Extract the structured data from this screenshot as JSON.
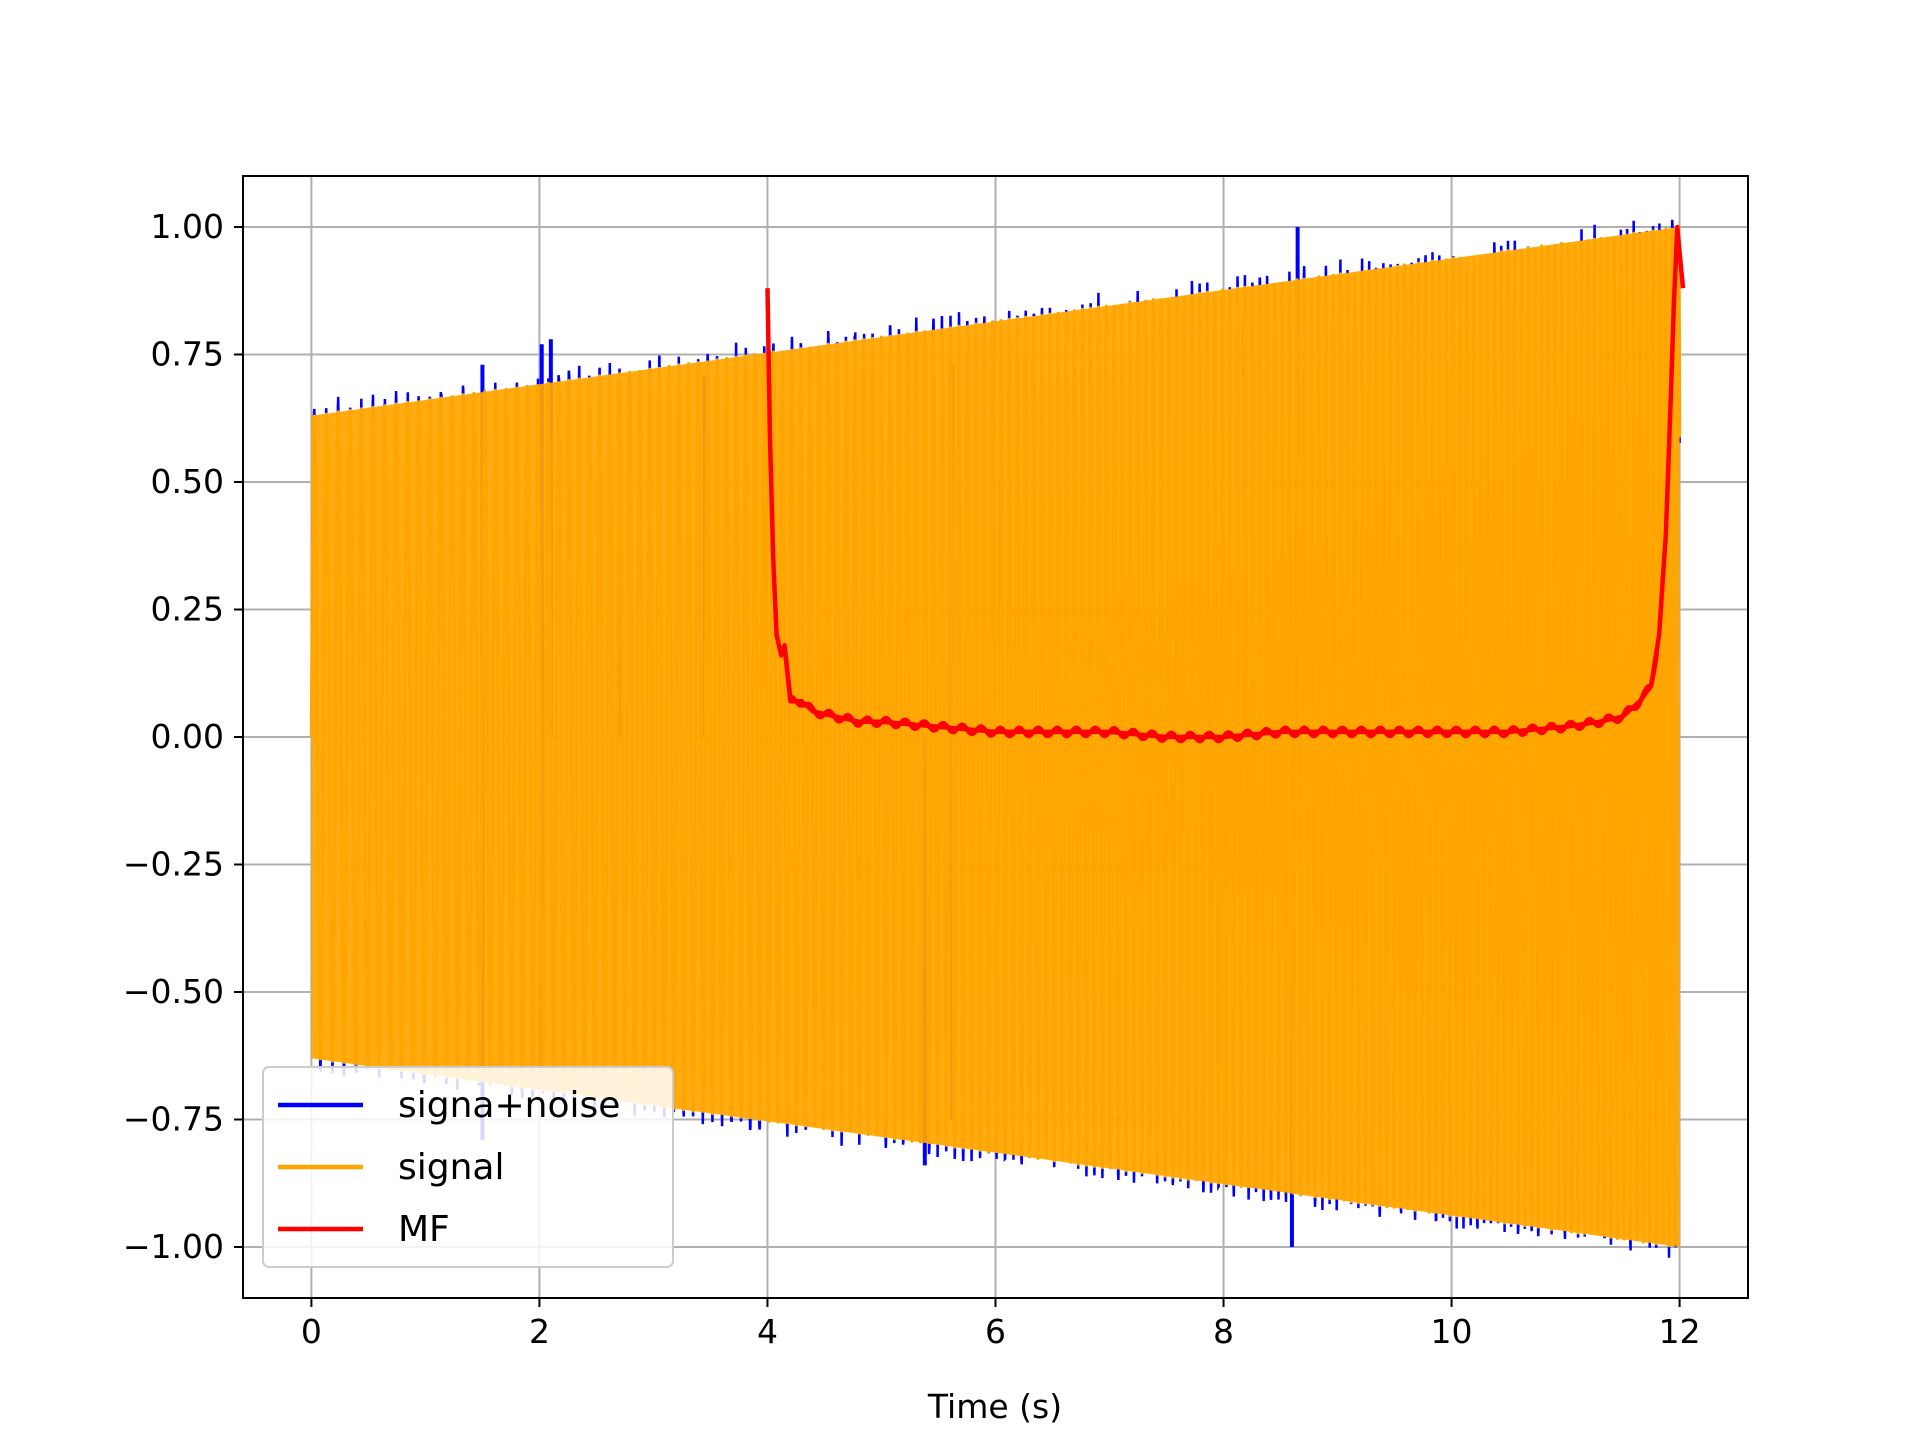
{
  "chart_data": {
    "type": "line",
    "title": "",
    "xlabel": "Time (s)",
    "ylabel": "",
    "xlim": [
      -0.6,
      12.6
    ],
    "ylim": [
      -1.1,
      1.1
    ],
    "grid": true,
    "legend_position": "lower-left",
    "x_ticks": [
      0,
      2,
      4,
      6,
      8,
      10,
      12
    ],
    "x_tick_labels": [
      "0",
      "2",
      "4",
      "6",
      "8",
      "10",
      "12"
    ],
    "y_ticks": [
      -1.0,
      -0.75,
      -0.5,
      -0.25,
      0.0,
      0.25,
      0.5,
      0.75,
      1.0
    ],
    "y_tick_labels": [
      "−1.00",
      "−0.75",
      "−0.50",
      "−0.25",
      "0.00",
      "0.25",
      "0.50",
      "0.75",
      "1.00"
    ],
    "series": [
      {
        "name": "signa+noise",
        "color": "#0000ff",
        "description": "oscillating signal with additive noise; envelope rises from about 0.63 to 1.0 over 0–12 s",
        "envelope": {
          "x": [
            0,
            12
          ],
          "amplitude_start": 0.63,
          "amplitude_end": 1.0
        },
        "spikes": [
          {
            "x": 1.5,
            "y": 0.73
          },
          {
            "x": 2.02,
            "y": 0.77
          },
          {
            "x": 2.1,
            "y": 0.78
          },
          {
            "x": 2.7,
            "y": 0.7
          },
          {
            "x": 3.45,
            "y": 0.71
          },
          {
            "x": 5.62,
            "y": 0.73
          },
          {
            "x": 8.18,
            "y": 0.81
          },
          {
            "x": 8.65,
            "y": 1.0
          },
          {
            "x": 5.38,
            "y": -0.84
          },
          {
            "x": 5.62,
            "y": -0.75
          },
          {
            "x": 8.6,
            "y": -1.0
          },
          {
            "x": 8.68,
            "y": -0.85
          },
          {
            "x": 1.5,
            "y": -0.79
          },
          {
            "x": 2.02,
            "y": -0.69
          }
        ]
      },
      {
        "name": "signal",
        "color": "#ffa500",
        "description": "chirp oscillation between ±envelope, envelope from 0.63 at t=0 to 1.0 at t=12",
        "envelope": {
          "x": [
            0,
            12
          ],
          "amplitude_start": 0.63,
          "amplitude_end": 1.0
        }
      },
      {
        "name": "MF",
        "color": "#ff0000",
        "x": [
          4.0,
          4.02,
          4.05,
          4.08,
          4.12,
          4.15,
          4.2,
          4.3,
          4.4,
          4.6,
          4.8,
          5.0,
          5.5,
          6.0,
          6.5,
          7.0,
          7.5,
          8.0,
          8.5,
          9.0,
          9.5,
          10.0,
          10.5,
          11.0,
          11.3,
          11.5,
          11.65,
          11.75,
          11.82,
          11.88,
          11.92,
          11.95,
          11.98,
          12.0,
          12.03
        ],
        "y": [
          0.88,
          0.6,
          0.35,
          0.2,
          0.16,
          0.18,
          0.07,
          0.07,
          0.05,
          0.04,
          0.03,
          0.03,
          0.02,
          0.01,
          0.01,
          0.01,
          0.0,
          0.0,
          0.01,
          0.01,
          0.01,
          0.01,
          0.01,
          0.02,
          0.03,
          0.04,
          0.07,
          0.1,
          0.2,
          0.4,
          0.65,
          0.85,
          1.0,
          0.95,
          0.88
        ]
      }
    ]
  }
}
